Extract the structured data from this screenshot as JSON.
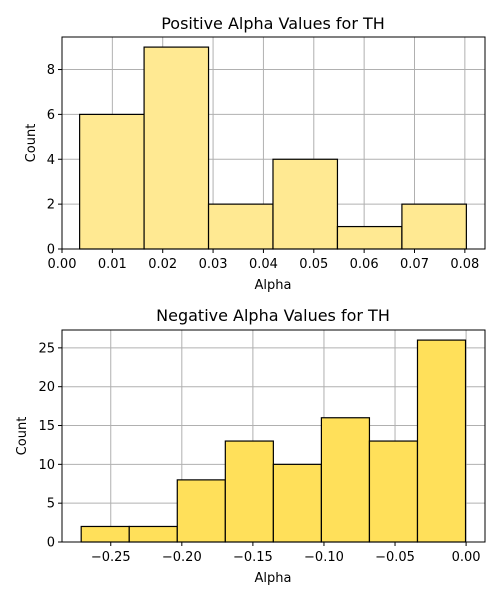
{
  "chart_data": [
    {
      "type": "bar",
      "title": "Positive Alpha Values for TH",
      "xlabel": "Alpha",
      "ylabel": "Count",
      "xlim": [
        0.0,
        0.084
      ],
      "ylim": [
        0,
        9.45
      ],
      "xticks": [
        "0.00",
        "0.01",
        "0.02",
        "0.03",
        "0.04",
        "0.05",
        "0.06",
        "0.07",
        "0.08"
      ],
      "xtick_values": [
        0.0,
        0.01,
        0.02,
        0.03,
        0.04,
        0.05,
        0.06,
        0.07,
        0.08
      ],
      "yticks": [
        "0",
        "2",
        "4",
        "6",
        "8"
      ],
      "ytick_values": [
        0,
        2,
        4,
        6,
        8
      ],
      "grid": true,
      "bar_color": "#ffe992",
      "edge_color": "#000000",
      "bins": [
        {
          "x0": 0.0035,
          "x1": 0.0163,
          "count": 6
        },
        {
          "x0": 0.0163,
          "x1": 0.0291,
          "count": 9
        },
        {
          "x0": 0.0291,
          "x1": 0.0419,
          "count": 2
        },
        {
          "x0": 0.0419,
          "x1": 0.0547,
          "count": 4
        },
        {
          "x0": 0.0547,
          "x1": 0.0675,
          "count": 1
        },
        {
          "x0": 0.0675,
          "x1": 0.0803,
          "count": 2
        }
      ]
    },
    {
      "type": "bar",
      "title": "Negative Alpha Values for TH",
      "xlabel": "Alpha",
      "ylabel": "Count",
      "xlim": [
        -0.2843,
        0.0133
      ],
      "ylim": [
        0,
        27.3
      ],
      "xticks": [
        "−0.25",
        "−0.20",
        "−0.15",
        "−0.10",
        "−0.05",
        "0.00"
      ],
      "xtick_values": [
        -0.25,
        -0.2,
        -0.15,
        -0.1,
        -0.05,
        0.0
      ],
      "yticks": [
        "0",
        "5",
        "10",
        "15",
        "20",
        "25"
      ],
      "ytick_values": [
        0,
        5,
        10,
        15,
        20,
        25
      ],
      "grid": true,
      "bar_color": "#ffe05a",
      "edge_color": "#000000",
      "bins": [
        {
          "x0": -0.2708,
          "x1": -0.237,
          "count": 2
        },
        {
          "x0": -0.237,
          "x1": -0.2032,
          "count": 2
        },
        {
          "x0": -0.2032,
          "x1": -0.1694,
          "count": 8
        },
        {
          "x0": -0.1694,
          "x1": -0.1356,
          "count": 13
        },
        {
          "x0": -0.1356,
          "x1": -0.1018,
          "count": 10
        },
        {
          "x0": -0.1018,
          "x1": -0.068,
          "count": 16
        },
        {
          "x0": -0.068,
          "x1": -0.0342,
          "count": 13
        },
        {
          "x0": -0.0342,
          "x1": -0.0004,
          "count": 26
        }
      ]
    }
  ]
}
